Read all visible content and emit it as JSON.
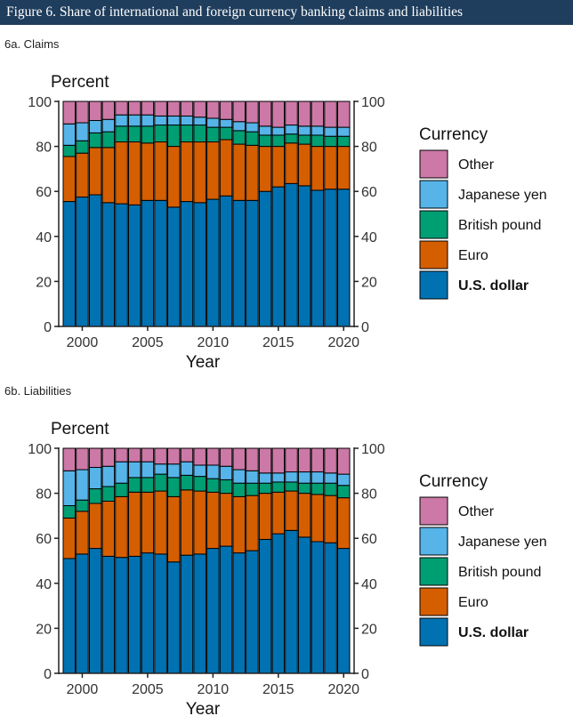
{
  "figure_title": "Figure 6. Share of international and foreign currency banking claims and liabilities",
  "colors": {
    "U.S. dollar": "#0072b2",
    "Euro": "#d55e00",
    "British pound": "#009e73",
    "Japanese yen": "#56b4e9",
    "Other": "#cc79a7"
  },
  "chart_data": [
    {
      "type": "bar",
      "stacked": true,
      "subtitle": "6a. Claims",
      "ylabel": "Percent",
      "xlabel": "Year",
      "ylim": [
        0,
        100
      ],
      "yticks": [
        0,
        20,
        40,
        60,
        80,
        100
      ],
      "xticks": [
        2000,
        2005,
        2010,
        2015,
        2020
      ],
      "legend_title": "Currency",
      "legend_position": "right",
      "categories": [
        1999,
        2000,
        2001,
        2002,
        2003,
        2004,
        2005,
        2006,
        2007,
        2008,
        2009,
        2010,
        2011,
        2012,
        2013,
        2014,
        2015,
        2016,
        2017,
        2018,
        2019,
        2020
      ],
      "series": [
        {
          "name": "U.S. dollar",
          "values": [
            55.5,
            57.5,
            58.5,
            55,
            54.5,
            54,
            56,
            56,
            53,
            55.5,
            55,
            56.5,
            58,
            56,
            56,
            60,
            62,
            63.5,
            62.5,
            60.5,
            61,
            61
          ]
        },
        {
          "name": "Euro",
          "values": [
            20,
            19.5,
            21,
            24.5,
            27.5,
            28,
            25.5,
            26,
            27,
            26.5,
            27,
            25.5,
            25,
            25,
            24.5,
            20,
            18,
            18,
            18.5,
            19.5,
            19,
            19
          ]
        },
        {
          "name": "British pound",
          "values": [
            5,
            5.5,
            6.5,
            7,
            7,
            7,
            7.5,
            7.5,
            9.5,
            7.5,
            7.5,
            6.5,
            5.5,
            6,
            6,
            5,
            5,
            4,
            4,
            5,
            4.5,
            4.5
          ]
        },
        {
          "name": "Japanese yen",
          "values": [
            9.5,
            8,
            5.5,
            5.5,
            5,
            5,
            5,
            4,
            4,
            4,
            3.5,
            4,
            3.5,
            4,
            4,
            4,
            3.5,
            4,
            4,
            4,
            4,
            4
          ]
        },
        {
          "name": "Other",
          "values": [
            10,
            9.5,
            8.5,
            8,
            6,
            6,
            6,
            6.5,
            6.5,
            6.5,
            7,
            7.5,
            8,
            9,
            9.5,
            11,
            11.5,
            10.5,
            11,
            11,
            11.5,
            11.5
          ]
        }
      ]
    },
    {
      "type": "bar",
      "stacked": true,
      "subtitle": "6b. Liabilities",
      "ylabel": "Percent",
      "xlabel": "Year",
      "ylim": [
        0,
        100
      ],
      "yticks": [
        0,
        20,
        40,
        60,
        80,
        100
      ],
      "xticks": [
        2000,
        2005,
        2010,
        2015,
        2020
      ],
      "legend_title": "Currency",
      "legend_position": "right",
      "categories": [
        1999,
        2000,
        2001,
        2002,
        2003,
        2004,
        2005,
        2006,
        2007,
        2008,
        2009,
        2010,
        2011,
        2012,
        2013,
        2014,
        2015,
        2016,
        2017,
        2018,
        2019,
        2020
      ],
      "series": [
        {
          "name": "U.S. dollar",
          "values": [
            51,
            53,
            55.5,
            52,
            51.5,
            52,
            53.5,
            53,
            49.5,
            52.5,
            53,
            55.5,
            56.5,
            53.5,
            54.5,
            59.5,
            62,
            63.5,
            60.5,
            58.5,
            58,
            55.5
          ]
        },
        {
          "name": "Euro",
          "values": [
            18,
            19,
            20,
            24.5,
            27,
            28.5,
            27,
            28,
            29,
            29,
            28,
            25,
            23.5,
            25,
            24.5,
            20.5,
            18.5,
            17.5,
            19.5,
            21,
            21,
            22.5
          ]
        },
        {
          "name": "British pound",
          "values": [
            5.5,
            5,
            6.5,
            6.5,
            6,
            6.5,
            6.5,
            7.5,
            8.5,
            6.5,
            6.5,
            6,
            6,
            6,
            5.5,
            4.5,
            4.5,
            4,
            4.5,
            5,
            5.5,
            5.5
          ]
        },
        {
          "name": "Japanese yen",
          "values": [
            15.5,
            13.5,
            9.5,
            9,
            9.5,
            7,
            7,
            4.5,
            6,
            6,
            5,
            6,
            6,
            6,
            5.5,
            4.5,
            4,
            4.5,
            5,
            5,
            4.5,
            5
          ]
        },
        {
          "name": "Other",
          "values": [
            10,
            9.5,
            8.5,
            8,
            6,
            6,
            6,
            7,
            7,
            6,
            7.5,
            7.5,
            8,
            9.5,
            10,
            11,
            11,
            10.5,
            10.5,
            10.5,
            11,
            11.5
          ]
        }
      ]
    }
  ]
}
